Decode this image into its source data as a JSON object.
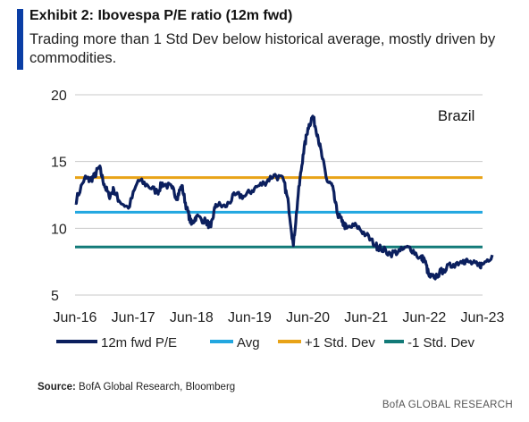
{
  "header": {
    "title": "Exhibit 2: Ibovespa P/E ratio (12m fwd)",
    "subtitle": "Trading more than 1 Std Dev below historical average, mostly driven by commodities."
  },
  "source": {
    "label": "Source:",
    "text": "BofA Global Research, Bloomberg"
  },
  "footer": {
    "brand": "BofA GLOBAL RESEARCH"
  },
  "colors": {
    "accent": "#0a3ea5",
    "pe": "#0b1f5e",
    "avg": "#22a7e0",
    "plus_sd": "#e8a317",
    "minus_sd": "#127a78",
    "grid": "#c8c8c8"
  },
  "chart_data": {
    "type": "line",
    "title": "",
    "annotation": "Brazil",
    "xlabel": "",
    "ylabel": "",
    "ylim": [
      5,
      20
    ],
    "yticks": [
      "20",
      "15",
      "10",
      "5"
    ],
    "xticks": [
      "Jun-16",
      "Jun-17",
      "Jun-18",
      "Jun-19",
      "Jun-20",
      "Jun-21",
      "Jun-22",
      "Jun-23"
    ],
    "grid": true,
    "legend_position": "bottom",
    "series": [
      {
        "name": "12m fwd P/E",
        "type": "line",
        "x": [
          "2016-06",
          "2016-08",
          "2016-09",
          "2016-10",
          "2016-11",
          "2016-12",
          "2017-01",
          "2017-02",
          "2017-03",
          "2017-05",
          "2017-07",
          "2017-09",
          "2017-11",
          "2017-12",
          "2018-02",
          "2018-03",
          "2018-04",
          "2018-05",
          "2018-06",
          "2018-07",
          "2018-09",
          "2018-10",
          "2018-11",
          "2019-01",
          "2019-03",
          "2019-05",
          "2019-07",
          "2019-09",
          "2019-11",
          "2020-01",
          "2020-02",
          "2020-03",
          "2020-04",
          "2020-05",
          "2020-06",
          "2020-07",
          "2020-08",
          "2020-09",
          "2020-10",
          "2020-11",
          "2020-12",
          "2021-01",
          "2021-02",
          "2021-04",
          "2021-06",
          "2021-08",
          "2021-09",
          "2021-11",
          "2022-01",
          "2022-03",
          "2022-05",
          "2022-06",
          "2022-07",
          "2022-08",
          "2022-10",
          "2022-12",
          "2023-02",
          "2023-03",
          "2023-05",
          "2023-06",
          "2023-08"
        ],
        "values": [
          11.9,
          13.8,
          13.6,
          13.9,
          14.6,
          13.3,
          12.4,
          12.9,
          12.1,
          11.5,
          13.6,
          13.2,
          12.7,
          13.4,
          13.0,
          12.3,
          13.2,
          11.5,
          10.3,
          10.9,
          10.5,
          10.1,
          11.8,
          11.6,
          12.5,
          12.4,
          13.0,
          13.4,
          14.0,
          13.6,
          11.8,
          8.7,
          12.5,
          15.5,
          17.5,
          18.4,
          17.0,
          15.2,
          13.5,
          13.2,
          11.2,
          10.5,
          10.0,
          10.2,
          9.5,
          8.7,
          8.5,
          8.1,
          8.3,
          8.6,
          7.8,
          7.7,
          6.4,
          6.3,
          6.9,
          7.3,
          7.6,
          7.5,
          7.2,
          7.3,
          8.0
        ]
      },
      {
        "name": "Avg",
        "type": "hline",
        "value": 11.2
      },
      {
        "name": "+1 Std. Dev",
        "type": "hline",
        "value": 13.8
      },
      {
        "name": "-1 Std. Dev",
        "type": "hline",
        "value": 8.6
      }
    ]
  }
}
